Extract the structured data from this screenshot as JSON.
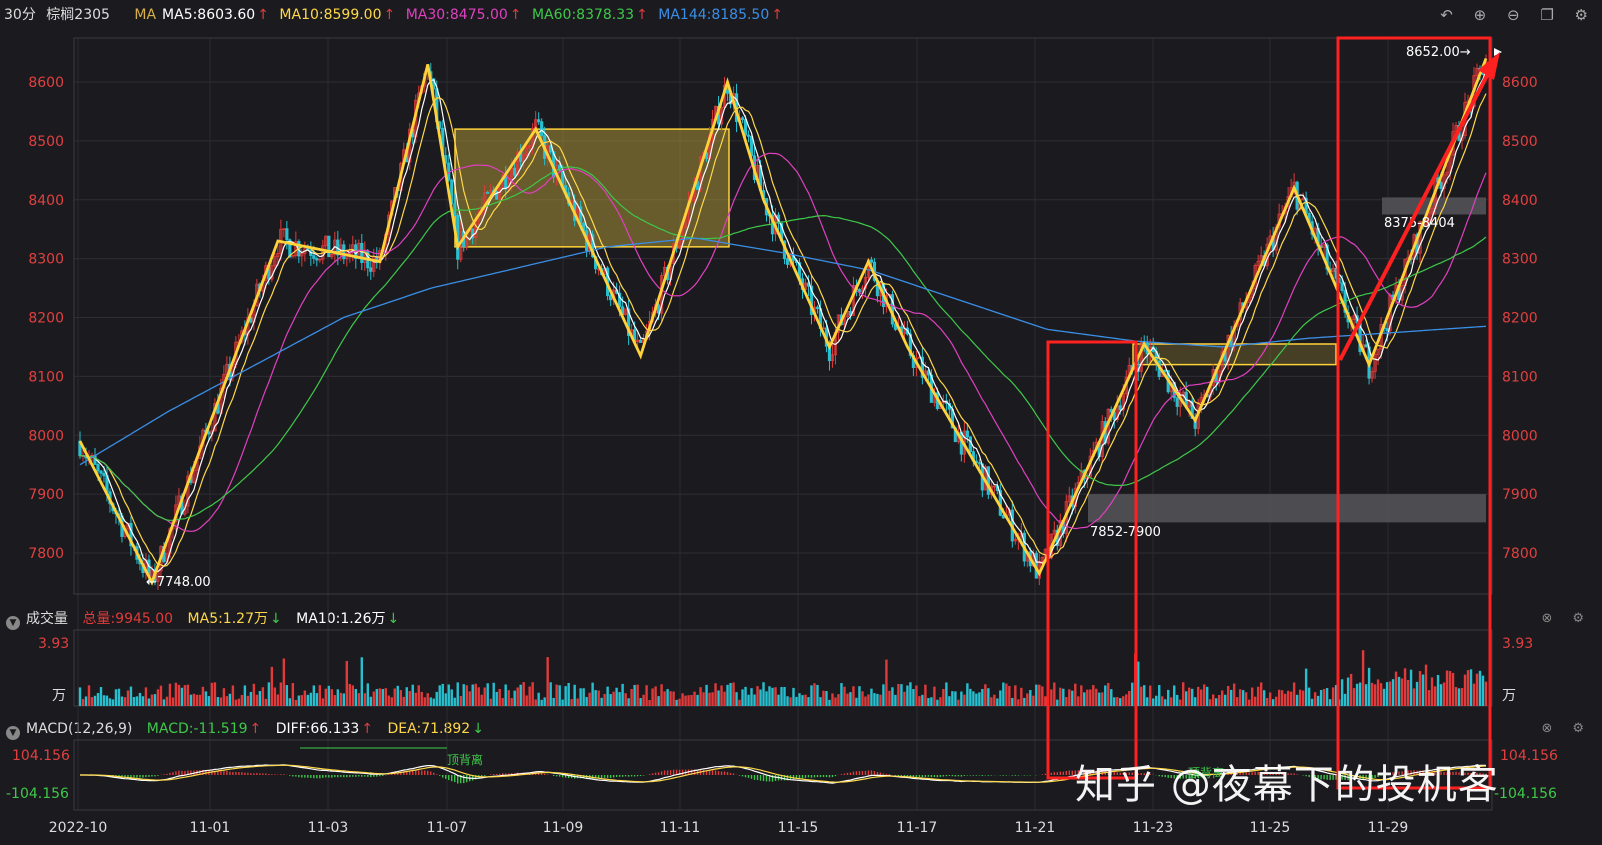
{
  "header": {
    "interval": "30分",
    "symbol": "棕榈2305",
    "ma_prefix": "MA",
    "ma5": "MA5:8603.60",
    "ma10": "MA10:8599.00",
    "ma30": "MA30:8475.00",
    "ma60": "MA60:8378.33",
    "ma144": "MA144:8185.50",
    "arrow": "↑"
  },
  "volume_header": {
    "title": "成交量",
    "total": "总量:9945.00",
    "ma5": "MA5:1.27万",
    "ma10": "MA10:1.26万",
    "arrow_down": "↓"
  },
  "macd_header": {
    "title": "MACD(12,26,9)",
    "macd": "MACD:-11.519",
    "diff": "DIFF:66.133",
    "dea": "DEA:71.892",
    "arrow_up": "↑",
    "arrow_down": "↓"
  },
  "icons": [
    "undo-icon",
    "zoom-in-icon",
    "zoom-out-icon",
    "window-icon",
    "settings-icon"
  ],
  "colors": {
    "background": "#1b1b1f",
    "up": "#e03a3a",
    "down": "#27c0d0",
    "ma5": "#ffffff",
    "ma10": "#ffd84a",
    "ma30": "#e040c0",
    "ma60": "#3ec84a",
    "ma144": "#3a8ee6",
    "zigzag": "#ffd23a",
    "annotation": "#ff2020",
    "axis_label": "#e04040"
  },
  "chart_data": {
    "type": "candlestick",
    "price_axis": {
      "ticks": [
        8600,
        8500,
        8400,
        8300,
        8200,
        8100,
        8000,
        7900,
        7800
      ],
      "ylim": [
        7735,
        8670
      ]
    },
    "x_ticks": [
      "2022-10",
      "11-01",
      "11-03",
      "11-07",
      "11-09",
      "11-11",
      "11-15",
      "11-17",
      "11-21",
      "11-23",
      "11-25",
      "11-29"
    ],
    "price_labels": {
      "low": "←7748.00",
      "high": "8652.00→",
      "zone_low": "7852-7900",
      "zone_high": "8375-8404"
    },
    "zigzag_anchor_prices": [
      7990,
      7750,
      7975,
      8330,
      8295,
      8630,
      8320,
      8520,
      8135,
      8600,
      8400,
      8150,
      8295,
      8150,
      7765,
      8155,
      8025,
      8420,
      8120,
      8640
    ],
    "ma144_anchor_prices": [
      7950,
      8040,
      8120,
      8200,
      8250,
      8285,
      8320,
      8335,
      8310,
      8280,
      8230,
      8180,
      8160,
      8150,
      8165,
      8175,
      8185
    ],
    "rectangles": [
      {
        "from": "11-07",
        "to": "11-11",
        "range": [
          8320,
          8520
        ]
      },
      {
        "from": "11-22",
        "to": "11-27",
        "range": [
          8120,
          8155
        ]
      }
    ],
    "shaded_zones": [
      {
        "label": "7852-7900",
        "range": [
          7852,
          7900
        ]
      },
      {
        "label": "8375-8404",
        "range": [
          8375,
          8404
        ]
      }
    ],
    "volume_axis": {
      "ticks": [
        "3.93",
        "万"
      ]
    },
    "macd_axis": {
      "ticks": [
        "104.156",
        "-104.156"
      ]
    },
    "macd_annotations": [
      "顶背离",
      "顶背离"
    ]
  },
  "watermark": "知乎 @夜幕下的投机客"
}
